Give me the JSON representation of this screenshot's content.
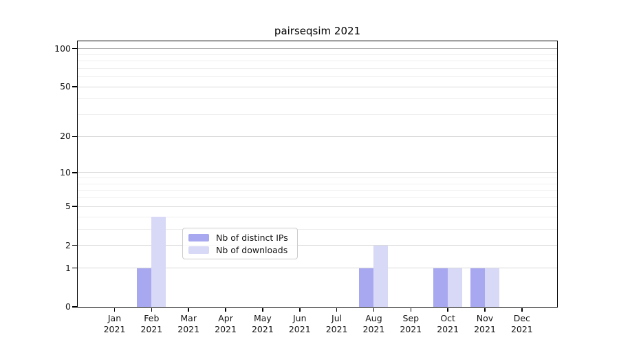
{
  "chart_data": {
    "type": "bar",
    "title": "pairseqsim 2021",
    "year": "2021",
    "categories": [
      "Jan",
      "Feb",
      "Mar",
      "Apr",
      "May",
      "Jun",
      "Jul",
      "Aug",
      "Sep",
      "Oct",
      "Nov",
      "Dec"
    ],
    "series": [
      {
        "name": "Nb of distinct IPs",
        "color": "#a8a8f0",
        "values": [
          0,
          1,
          0,
          0,
          0,
          0,
          0,
          1,
          0,
          1,
          1,
          0
        ]
      },
      {
        "name": "Nb of downloads",
        "color": "#d8d8f7",
        "values": [
          0,
          4,
          0,
          0,
          0,
          0,
          0,
          2,
          0,
          1,
          1,
          0
        ]
      }
    ],
    "scale": "log1p",
    "ylim": [
      0,
      114
    ],
    "yticks": [
      0,
      1,
      2,
      5,
      10,
      20,
      50,
      100
    ],
    "yticks_minor": [
      3,
      4,
      6,
      7,
      8,
      9,
      30,
      40,
      60,
      70,
      80,
      90
    ],
    "grid": "both",
    "legend_position": "lower center",
    "colors": {
      "grid_major": "#d9d9d9",
      "grid_minor": "#efefef",
      "grid_top": "#b3b3b3",
      "axis": "#000000",
      "text": "#141414",
      "background": "#ffffff"
    }
  }
}
